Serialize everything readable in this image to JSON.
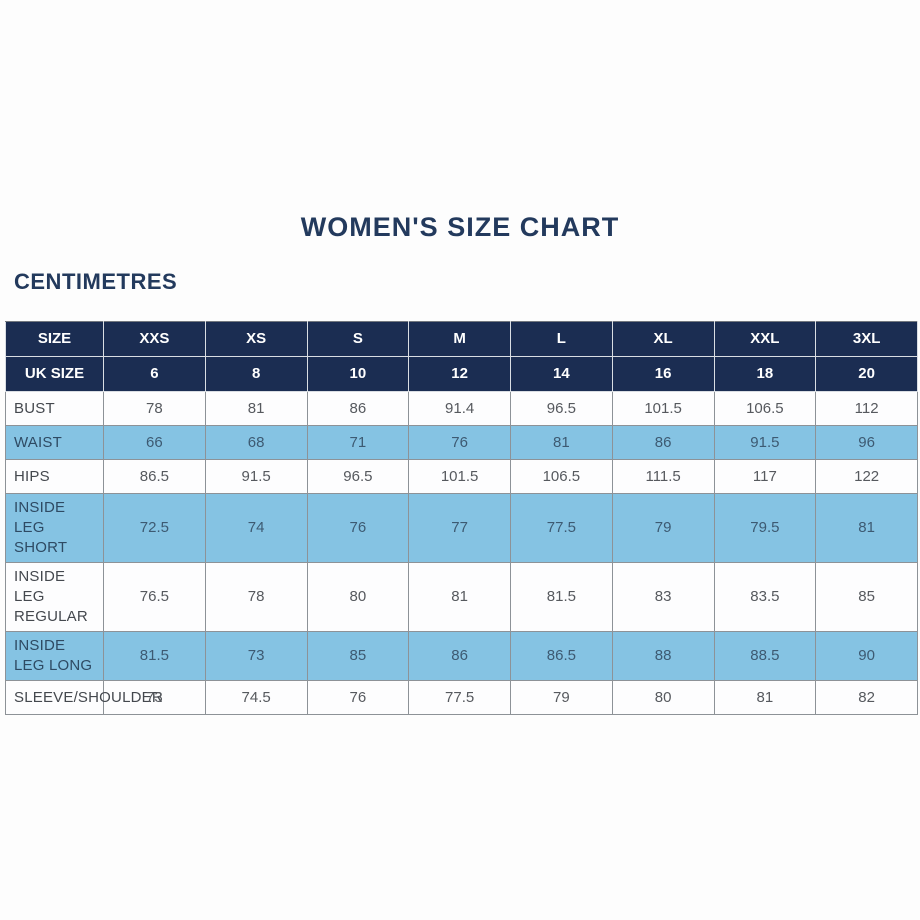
{
  "page": {
    "background": "#fdfdfd"
  },
  "colors": {
    "title_navy": "#233a5d",
    "header_bg": "#1b2d52",
    "header_text": "#ffffff",
    "row_blue": "#85c3e3",
    "row_white": "#fdfdfe"
  },
  "chart_data": {
    "type": "table",
    "title": "WOMEN'S SIZE CHART",
    "units_label": "CENTIMETRES",
    "header_rows": [
      {
        "label": "SIZE",
        "values": [
          "XXS",
          "XS",
          "S",
          "M",
          "L",
          "XL",
          "XXL",
          "3XL"
        ]
      },
      {
        "label": "UK SIZE",
        "values": [
          "6",
          "8",
          "10",
          "12",
          "14",
          "16",
          "18",
          "20"
        ]
      }
    ],
    "rows": [
      {
        "label": "BUST",
        "shade": "white",
        "values": [
          "78",
          "81",
          "86",
          "91.4",
          "96.5",
          "101.5",
          "106.5",
          "112"
        ]
      },
      {
        "label": "WAIST",
        "shade": "blue",
        "values": [
          "66",
          "68",
          "71",
          "76",
          "81",
          "86",
          "91.5",
          "96"
        ]
      },
      {
        "label": "HIPS",
        "shade": "white",
        "values": [
          "86.5",
          "91.5",
          "96.5",
          "101.5",
          "106.5",
          "111.5",
          "117",
          "122"
        ]
      },
      {
        "label": "INSIDE LEG SHORT",
        "shade": "blue",
        "values": [
          "72.5",
          "74",
          "76",
          "77",
          "77.5",
          "79",
          "79.5",
          "81"
        ]
      },
      {
        "label": "INSIDE LEG REGULAR",
        "shade": "white",
        "values": [
          "76.5",
          "78",
          "80",
          "81",
          "81.5",
          "83",
          "83.5",
          "85"
        ]
      },
      {
        "label": "INSIDE LEG LONG",
        "shade": "blue",
        "values": [
          "81.5",
          "73",
          "85",
          "86",
          "86.5",
          "88",
          "88.5",
          "90"
        ]
      },
      {
        "label": "SLEEVE/SHOULDER",
        "shade": "white",
        "values": [
          "73",
          "74.5",
          "76",
          "77.5",
          "79",
          "80",
          "81",
          "82"
        ]
      }
    ]
  }
}
